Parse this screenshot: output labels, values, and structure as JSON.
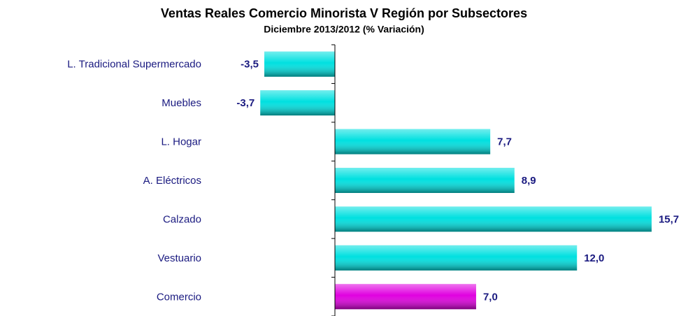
{
  "chart_data": {
    "type": "barh",
    "title": "Ventas Reales Comercio Minorista V Región por Subsectores",
    "subtitle": "Diciembre 2013/2012  (% Variación)",
    "categories": [
      "L. Tradicional Supermercado",
      "Muebles",
      "L. Hogar",
      "A. Eléctricos",
      "Calzado",
      "Vestuario",
      "Comercio"
    ],
    "values": [
      -3.5,
      -3.7,
      7.7,
      8.9,
      15.7,
      12.0,
      7.0
    ],
    "value_labels": [
      "-3,5",
      "-3,7",
      "7,7",
      "8,9",
      "15,7",
      "12,0",
      "7,0"
    ],
    "colors": [
      "#00e0e0",
      "#00e0e0",
      "#00e0e0",
      "#00e0e0",
      "#00e0e0",
      "#00e0e0",
      "#e000e0"
    ],
    "xlim": [
      -4,
      16
    ]
  }
}
